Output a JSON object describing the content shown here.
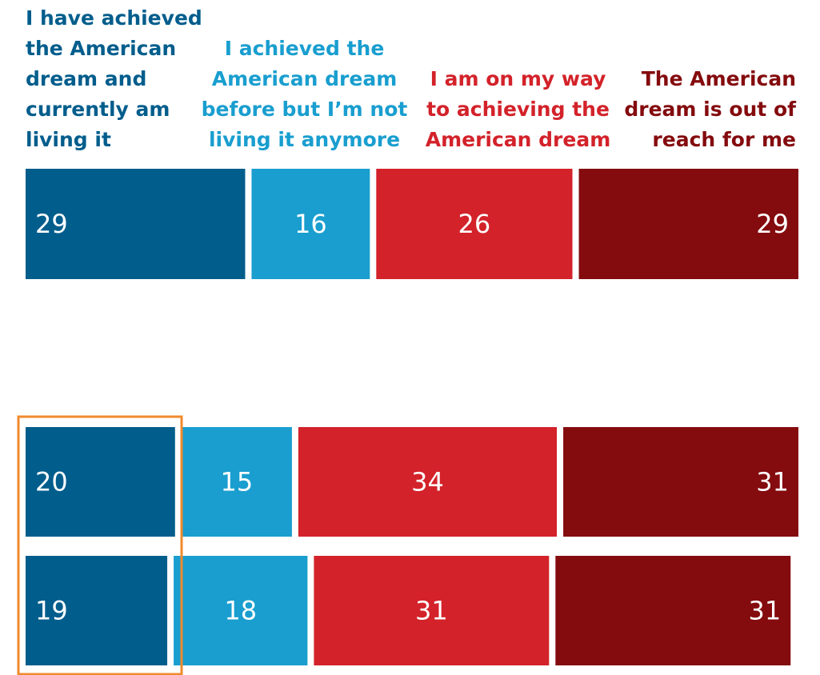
{
  "chart_data": {
    "type": "stacked-bar-horizontal",
    "categories": [
      null,
      null,
      null
    ],
    "xlim": [
      0,
      100
    ],
    "series": [
      {
        "name": "I have achieved the American dream and currently am living it",
        "color": "#005d8c",
        "values": [
          29,
          20,
          19
        ]
      },
      {
        "name": "I achieved the American dream before but I’m not living it anymore",
        "color": "#199ecf",
        "values": [
          16,
          15,
          18
        ]
      },
      {
        "name": "I am on my way to achieving the American dream",
        "color": "#d3222a",
        "values": [
          26,
          34,
          31
        ]
      },
      {
        "name": "The American dream is out of reach for me",
        "color": "#840b0e",
        "values": [
          29,
          31,
          31
        ]
      }
    ]
  }
}
